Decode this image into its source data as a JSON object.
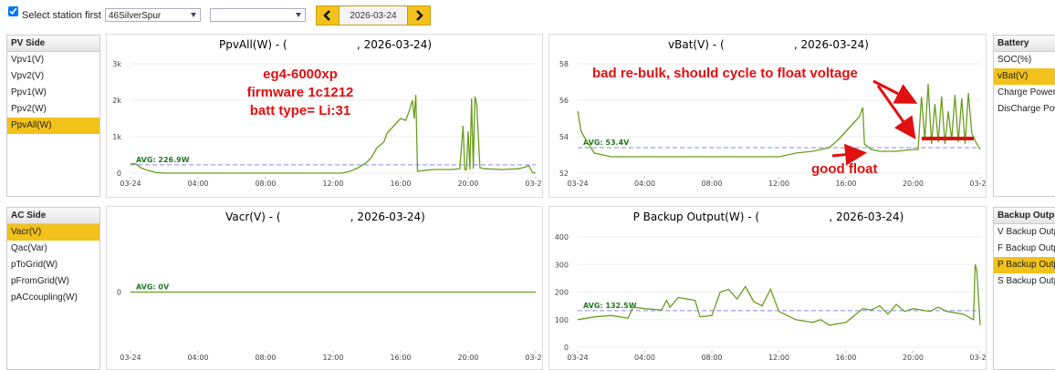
{
  "toolbar": {
    "checkbox_label": "Select station first",
    "station": "46SilverSpur",
    "date": "2026-03-24"
  },
  "panels": [
    {
      "title": "PV Side",
      "items": [
        "Vpv1(V)",
        "Vpv2(V)",
        "Ppv1(W)",
        "Ppv2(W)",
        "PpvAll(W)"
      ],
      "selected": 4
    },
    {
      "title": "Battery",
      "items": [
        "SOC(%)",
        "vBat(V)",
        "Charge Power(W",
        "DisCharge Powe"
      ],
      "selected": 1
    },
    {
      "title": "AC Side",
      "items": [
        "Vacr(V)",
        "Qac(Var)",
        "pToGrid(W)",
        "pFromGrid(W)",
        "pACcoupling(W)"
      ],
      "selected": 0
    },
    {
      "title": "Backup Output",
      "items": [
        "V Backup Output",
        "F Backup Outpu",
        "P Backup Outpu",
        "S Backup Output"
      ],
      "selected": 2
    }
  ],
  "chart_data": [
    {
      "type": "line",
      "title": "PpvAll(W) - (                    , 2026-03-24)",
      "color": "#6a9e1f",
      "x": [
        0,
        0.3,
        0.6,
        1,
        1.5,
        2,
        4,
        8,
        12,
        12.5,
        13,
        13.5,
        14,
        14.3,
        14.6,
        15,
        15.2,
        15.5,
        15.8,
        16,
        16.3,
        16.5,
        16.7,
        16.8,
        16.9,
        17,
        17.5,
        18,
        19,
        19.5,
        19.7,
        19.8,
        19.9,
        20,
        20.1,
        20.2,
        20.3,
        20.4,
        20.5,
        20.7,
        21,
        22,
        23,
        23.6,
        23.8,
        24
      ],
      "values": [
        250,
        260,
        150,
        80,
        20,
        0,
        0,
        0,
        0,
        0,
        50,
        150,
        300,
        450,
        700,
        850,
        1100,
        1250,
        1400,
        1500,
        1450,
        1700,
        2000,
        1500,
        2150,
        50,
        80,
        100,
        100,
        120,
        1300,
        100,
        90,
        1150,
        100,
        2050,
        120,
        2100,
        1900,
        150,
        120,
        100,
        120,
        200,
        20,
        0
      ],
      "xlim": [
        0,
        24
      ],
      "xticks": [
        {
          "value": 0,
          "label": "03-24"
        },
        {
          "value": 4,
          "label": "04:00"
        },
        {
          "value": 8,
          "label": "08:00"
        },
        {
          "value": 12,
          "label": "12:00"
        },
        {
          "value": 16,
          "label": "16:00"
        },
        {
          "value": 20,
          "label": "20:00"
        },
        {
          "value": 24,
          "label": "03-25"
        }
      ],
      "ylim": [
        0,
        3000
      ],
      "yticks": [
        0,
        {
          "value": 1000,
          "label": "1k"
        },
        {
          "value": 2000,
          "label": "2k"
        },
        {
          "value": 3000,
          "label": "3k"
        }
      ],
      "avg": 226.9,
      "avg_label": "AVG: 226.9W",
      "avg_color": "#8888ee",
      "annotations": [
        "eg4-6000xp",
        "firmware 1c1212",
        "batt type= Li:31"
      ]
    },
    {
      "type": "line",
      "title": "vBat(V) - (                    , 2026-03-24)",
      "color": "#6a9e1f",
      "x": [
        0,
        0.2,
        0.5,
        1,
        2,
        4,
        6,
        8,
        10,
        12,
        13,
        14,
        15,
        15.5,
        16,
        16.5,
        16.8,
        17,
        17.1,
        17.5,
        18,
        19,
        20,
        20.3,
        20.5,
        20.7,
        20.9,
        21.1,
        21.3,
        21.5,
        21.7,
        21.9,
        22.1,
        22.3,
        22.5,
        22.7,
        22.9,
        23.1,
        23.3,
        23.5,
        23.8,
        24
      ],
      "values": [
        55.4,
        54.3,
        53.8,
        53.1,
        52.9,
        52.9,
        52.9,
        52.9,
        52.9,
        52.9,
        53.1,
        53.2,
        53.4,
        53.8,
        54.3,
        54.8,
        55.1,
        55.6,
        53.6,
        53.3,
        53.2,
        53.2,
        53.3,
        53.3,
        56.2,
        53.8,
        56.9,
        53.6,
        55.8,
        53.7,
        56.2,
        53.6,
        55.4,
        53.8,
        56.3,
        53.7,
        56.1,
        53.6,
        56.4,
        54.2,
        53.6,
        53.3
      ],
      "xlim": [
        0,
        24
      ],
      "xticks": [
        {
          "value": 0,
          "label": "03-24"
        },
        {
          "value": 4,
          "label": "04:00"
        },
        {
          "value": 8,
          "label": "08:00"
        },
        {
          "value": 12,
          "label": "12:00"
        },
        {
          "value": 16,
          "label": "16:00"
        },
        {
          "value": 20,
          "label": "20:00"
        },
        {
          "value": 24,
          "label": "03-25"
        }
      ],
      "ylim": [
        52,
        58
      ],
      "yticks": [
        52,
        54,
        56,
        58
      ],
      "avg": 53.4,
      "avg_label": "AVG: 53.4V",
      "avg_color": "#8888ee",
      "annotations": [
        "bad re-bulk, should cycle to float voltage",
        "good float"
      ]
    },
    {
      "type": "line",
      "title": "Vacr(V) - (                    , 2026-03-24)",
      "color": "#6a9e1f",
      "x": [
        0,
        24
      ],
      "values": [
        0,
        0
      ],
      "xlim": [
        0,
        24
      ],
      "xticks": [
        {
          "value": 0,
          "label": "03-24"
        },
        {
          "value": 4,
          "label": "04:00"
        },
        {
          "value": 8,
          "label": "08:00"
        },
        {
          "value": 12,
          "label": "12:00"
        },
        {
          "value": 16,
          "label": "16:00"
        },
        {
          "value": 20,
          "label": "20:00"
        },
        {
          "value": 24,
          "label": "03-25"
        }
      ],
      "ylim": [
        -1,
        1
      ],
      "yticks": [
        0
      ],
      "avg": 0,
      "avg_label": "AVG: 0V",
      "avg_color": "#8888ee"
    },
    {
      "type": "line",
      "title": "P Backup Output(W) - (                    , 2026-03-24)",
      "color": "#6a9e1f",
      "x": [
        0,
        1,
        2,
        3,
        3.3,
        4,
        5,
        5.3,
        5.5,
        6,
        7,
        7.3,
        8,
        8.5,
        9,
        9.5,
        10,
        10.5,
        11,
        11.5,
        12,
        13,
        14,
        14.5,
        15,
        16,
        17,
        17.5,
        18,
        18.5,
        19,
        19.5,
        20,
        21,
        21.5,
        22,
        23,
        23.3,
        23.6,
        23.7,
        23.8,
        24
      ],
      "values": [
        100,
        110,
        115,
        105,
        145,
        140,
        135,
        170,
        145,
        180,
        170,
        110,
        115,
        200,
        210,
        175,
        220,
        165,
        150,
        210,
        130,
        100,
        90,
        100,
        80,
        90,
        140,
        135,
        150,
        120,
        155,
        130,
        140,
        130,
        145,
        130,
        120,
        110,
        100,
        300,
        280,
        80
      ],
      "xlim": [
        0,
        24
      ],
      "xticks": [
        {
          "value": 0,
          "label": "03-24"
        },
        {
          "value": 4,
          "label": "04:00"
        },
        {
          "value": 8,
          "label": "08:00"
        },
        {
          "value": 12,
          "label": "12:00"
        },
        {
          "value": 16,
          "label": "16:00"
        },
        {
          "value": 20,
          "label": "20:00"
        },
        {
          "value": 24,
          "label": "03-25"
        }
      ],
      "ylim": [
        0,
        400
      ],
      "yticks": [
        0,
        100,
        200,
        300,
        400
      ],
      "avg": 132.5,
      "avg_label": "AVG: 132.5W",
      "avg_color": "#8888ee"
    }
  ]
}
